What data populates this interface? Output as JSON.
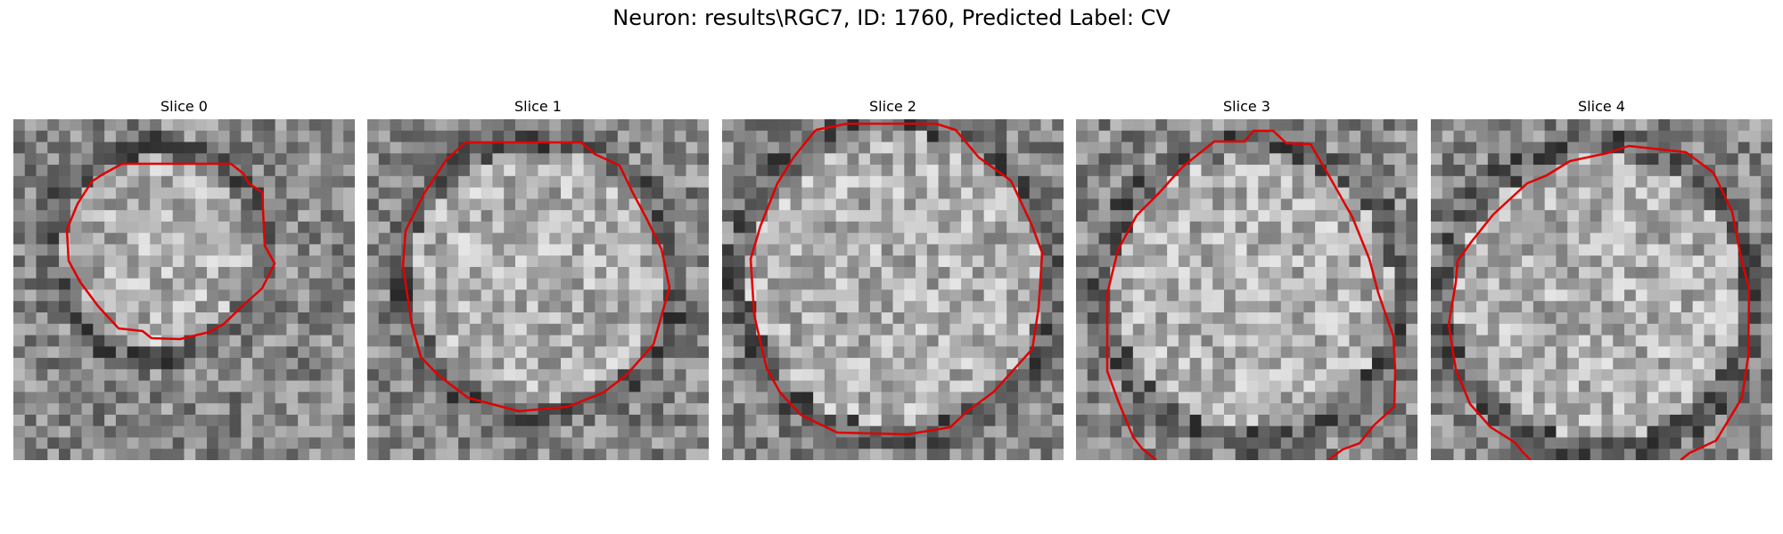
{
  "figure": {
    "title": "Neuron: results\\RGC7, ID: 1760, Predicted Label: CV",
    "contour_color": "#e00000",
    "colormap": "gray"
  },
  "slices": [
    {
      "label": "Slice 0"
    },
    {
      "label": "Slice 1"
    },
    {
      "label": "Slice 2"
    },
    {
      "label": "Slice 3"
    },
    {
      "label": "Slice 4"
    }
  ]
}
